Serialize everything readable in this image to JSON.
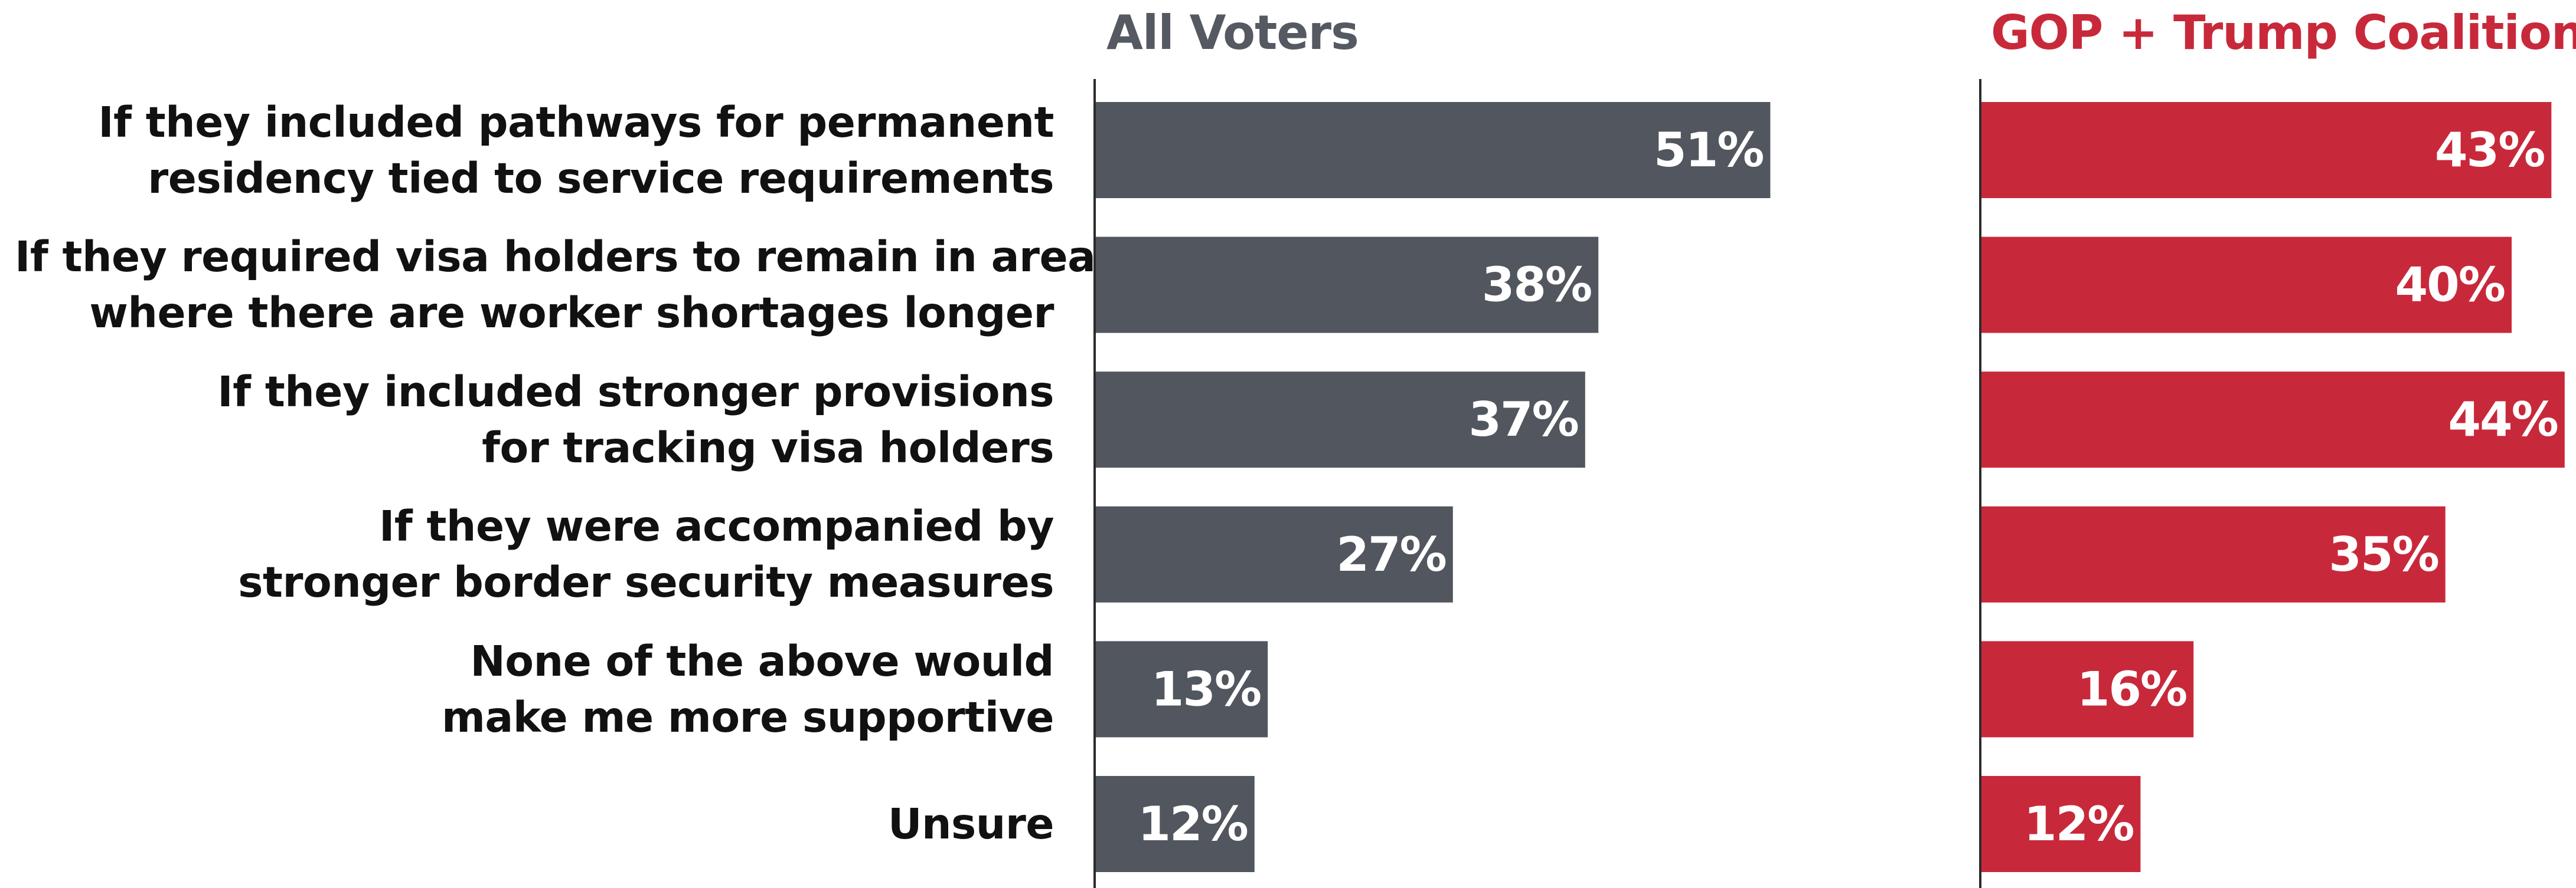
{
  "chart_data": {
    "type": "bar",
    "orientation": "horizontal",
    "categories": [
      [
        "If they included pathways for permanent",
        "residency tied to service requirements"
      ],
      [
        "If they required visa holders to remain in areas",
        "where there are worker shortages longer"
      ],
      [
        "If they included stronger provisions",
        "for tracking visa holders"
      ],
      [
        "If they were accompanied by",
        "stronger border security measures"
      ],
      [
        "None of the above would",
        "make me more supportive"
      ],
      [
        "Unsure"
      ]
    ],
    "series": [
      {
        "name": "All Voters",
        "color": "#52565e",
        "values": [
          51,
          38,
          37,
          27,
          13,
          12
        ]
      },
      {
        "name": "GOP + Trump Coalition",
        "color": "#c8293a",
        "values": [
          43,
          40,
          44,
          35,
          16,
          12
        ]
      }
    ],
    "value_suffix": "%",
    "xlim": [
      0,
      100
    ],
    "grid": false,
    "legend": "panel titles above each panel"
  }
}
